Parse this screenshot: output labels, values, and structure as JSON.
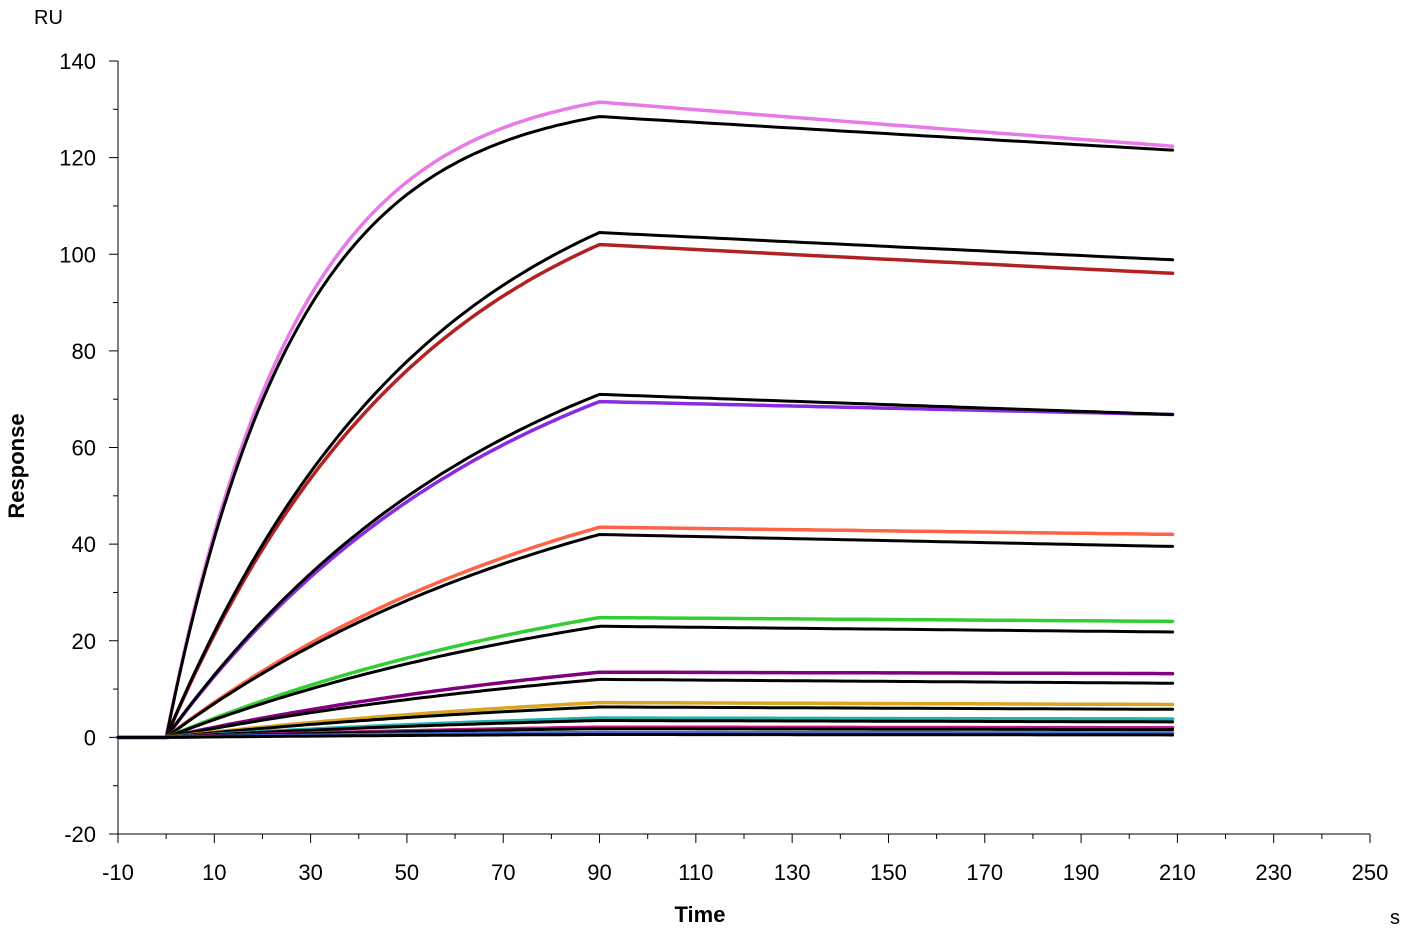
{
  "chart_data": {
    "type": "line",
    "title": "",
    "xlabel": "Time",
    "ylabel": "Response",
    "x_unit": "s",
    "y_unit": "RU",
    "xlim": [
      -10,
      250
    ],
    "ylim": [
      -20,
      140
    ],
    "x_ticks": [
      -10,
      10,
      30,
      50,
      70,
      90,
      110,
      130,
      150,
      170,
      190,
      210,
      230,
      250
    ],
    "y_ticks": [
      -20,
      0,
      20,
      40,
      60,
      80,
      100,
      120,
      140
    ],
    "x_tick_labels": [
      "-10",
      "10",
      "30",
      "50",
      "70",
      "90",
      "110",
      "130",
      "150",
      "170",
      "190",
      "210",
      "230",
      "250"
    ],
    "y_tick_labels": [
      "-20",
      "0",
      "20",
      "40",
      "60",
      "80",
      "100",
      "120",
      "140"
    ],
    "grid": false,
    "legend": "none",
    "injection_start": 0,
    "injection_end": 90,
    "dissociation_end": 210,
    "series": [
      {
        "role": "measured",
        "color": "#e87ae8",
        "plateau": 131.5,
        "end": 122.3,
        "shape": 1.2
      },
      {
        "role": "fit",
        "color": "#000000",
        "plateau": 128.5,
        "end": 121.5,
        "shape": 1.2
      },
      {
        "role": "measured",
        "color": "#b22222",
        "plateau": 102.0,
        "end": 96.0,
        "shape": 2.4
      },
      {
        "role": "fit",
        "color": "#000000",
        "plateau": 104.5,
        "end": 98.8,
        "shape": 2.4
      },
      {
        "role": "measured",
        "color": "#8a2be2",
        "plateau": 69.5,
        "end": 66.8,
        "shape": 3.2
      },
      {
        "role": "fit",
        "color": "#000000",
        "plateau": 71.0,
        "end": 66.8,
        "shape": 3.2
      },
      {
        "role": "measured",
        "color": "#ff6347",
        "plateau": 43.5,
        "end": 42.0,
        "shape": 4.0
      },
      {
        "role": "fit",
        "color": "#000000",
        "plateau": 42.0,
        "end": 39.5,
        "shape": 4.0
      },
      {
        "role": "measured",
        "color": "#32cd32",
        "plateau": 24.8,
        "end": 24.0,
        "shape": 4.5
      },
      {
        "role": "fit",
        "color": "#000000",
        "plateau": 23.0,
        "end": 21.8,
        "shape": 4.5
      },
      {
        "role": "measured",
        "color": "#800080",
        "plateau": 13.5,
        "end": 13.2,
        "shape": 5.0
      },
      {
        "role": "fit",
        "color": "#000000",
        "plateau": 12.0,
        "end": 11.2,
        "shape": 5.0
      },
      {
        "role": "measured",
        "color": "#daa520",
        "plateau": 7.2,
        "end": 6.8,
        "shape": 5.0
      },
      {
        "role": "fit",
        "color": "#000000",
        "plateau": 6.3,
        "end": 5.8,
        "shape": 5.0
      },
      {
        "role": "measured",
        "color": "#20b2aa",
        "plateau": 4.0,
        "end": 3.8,
        "shape": 5.0
      },
      {
        "role": "fit",
        "color": "#000000",
        "plateau": 3.5,
        "end": 3.2,
        "shape": 5.0
      },
      {
        "role": "measured",
        "color": "#c71585",
        "plateau": 2.1,
        "end": 2.0,
        "shape": 5.0
      },
      {
        "role": "fit",
        "color": "#000000",
        "plateau": 1.8,
        "end": 1.6,
        "shape": 5.0
      },
      {
        "role": "measured",
        "color": "#4169e1",
        "plateau": 1.0,
        "end": 0.9,
        "shape": 5.0
      },
      {
        "role": "fit",
        "color": "#000000",
        "plateau": 0.6,
        "end": 0.5,
        "shape": 5.0
      }
    ]
  }
}
